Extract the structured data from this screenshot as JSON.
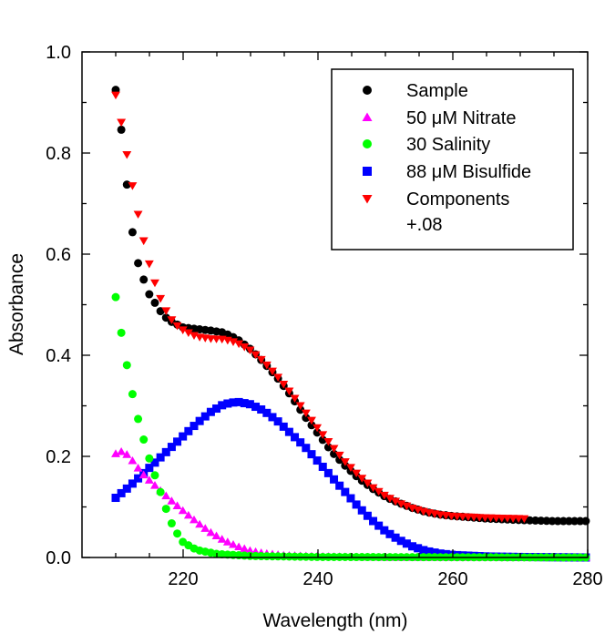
{
  "chart_data": {
    "type": "scatter",
    "title": "",
    "xlabel": "Wavelength (nm)",
    "ylabel": "Absorbance",
    "xlim": [
      205,
      280
    ],
    "ylim": [
      0,
      1.0
    ],
    "xticks": [
      220,
      240,
      260,
      280
    ],
    "yticks": [
      0.0,
      0.2,
      0.4,
      0.6,
      0.8,
      1.0
    ],
    "xtick_labels": [
      "220",
      "240",
      "260",
      "280"
    ],
    "ytick_labels": [
      "0.0",
      "0.2",
      "0.4",
      "0.6",
      "0.8",
      "1.0"
    ],
    "grid": false,
    "legend_position": "top-right",
    "series": [
      {
        "name": "Sample",
        "marker": "circle",
        "color": "#000000",
        "x_range": [
          210,
          280
        ],
        "x_step": 0.83,
        "key_points": [
          [
            210,
            0.925
          ],
          [
            211,
            0.83
          ],
          [
            212,
            0.69
          ],
          [
            213,
            0.595
          ],
          [
            214,
            0.555
          ],
          [
            215,
            0.52
          ],
          [
            216,
            0.5
          ],
          [
            217,
            0.48
          ],
          [
            218,
            0.468
          ],
          [
            220,
            0.455
          ],
          [
            222,
            0.452
          ],
          [
            224,
            0.449
          ],
          [
            226,
            0.445
          ],
          [
            228,
            0.432
          ],
          [
            230,
            0.412
          ],
          [
            232,
            0.385
          ],
          [
            234,
            0.355
          ],
          [
            236,
            0.32
          ],
          [
            238,
            0.28
          ],
          [
            240,
            0.245
          ],
          [
            242,
            0.21
          ],
          [
            244,
            0.182
          ],
          [
            246,
            0.157
          ],
          [
            248,
            0.137
          ],
          [
            250,
            0.12
          ],
          [
            252,
            0.108
          ],
          [
            254,
            0.098
          ],
          [
            256,
            0.09
          ],
          [
            258,
            0.085
          ],
          [
            260,
            0.082
          ],
          [
            265,
            0.077
          ],
          [
            270,
            0.074
          ],
          [
            275,
            0.072
          ],
          [
            280,
            0.072
          ]
        ]
      },
      {
        "name": "50 μM Nitrate",
        "marker": "triangle-up",
        "color": "#ff00ff",
        "x_range": [
          210,
          280
        ],
        "x_step": 0.83,
        "key_points": [
          [
            210,
            0.205
          ],
          [
            211,
            0.21
          ],
          [
            212,
            0.2
          ],
          [
            213,
            0.182
          ],
          [
            214,
            0.165
          ],
          [
            216,
            0.14
          ],
          [
            218,
            0.115
          ],
          [
            220,
            0.092
          ],
          [
            222,
            0.07
          ],
          [
            224,
            0.05
          ],
          [
            226,
            0.034
          ],
          [
            228,
            0.022
          ],
          [
            230,
            0.013
          ],
          [
            232,
            0.008
          ],
          [
            235,
            0.004
          ],
          [
            240,
            0.002
          ],
          [
            250,
            0.0
          ],
          [
            280,
            0.0
          ]
        ]
      },
      {
        "name": "30 Salinity",
        "marker": "circle",
        "color": "#00ff00",
        "x_range": [
          210,
          280
        ],
        "x_step": 0.83,
        "key_points": [
          [
            210,
            0.515
          ],
          [
            211,
            0.43
          ],
          [
            212,
            0.355
          ],
          [
            213,
            0.29
          ],
          [
            214,
            0.24
          ],
          [
            215,
            0.195
          ],
          [
            216,
            0.155
          ],
          [
            217,
            0.115
          ],
          [
            218,
            0.075
          ],
          [
            219,
            0.05
          ],
          [
            220,
            0.03
          ],
          [
            222,
            0.015
          ],
          [
            225,
            0.007
          ],
          [
            230,
            0.003
          ],
          [
            240,
            0.001
          ],
          [
            280,
            0.0
          ]
        ]
      },
      {
        "name": "88 μM Bisulfide",
        "marker": "square",
        "color": "#0000ff",
        "x_range": [
          210,
          280
        ],
        "x_step": 0.83,
        "key_points": [
          [
            210,
            0.118
          ],
          [
            212,
            0.14
          ],
          [
            214,
            0.165
          ],
          [
            216,
            0.19
          ],
          [
            218,
            0.215
          ],
          [
            220,
            0.24
          ],
          [
            222,
            0.265
          ],
          [
            224,
            0.287
          ],
          [
            226,
            0.303
          ],
          [
            228,
            0.308
          ],
          [
            230,
            0.303
          ],
          [
            232,
            0.29
          ],
          [
            234,
            0.27
          ],
          [
            236,
            0.245
          ],
          [
            238,
            0.22
          ],
          [
            240,
            0.19
          ],
          [
            242,
            0.16
          ],
          [
            244,
            0.13
          ],
          [
            246,
            0.1
          ],
          [
            248,
            0.074
          ],
          [
            250,
            0.052
          ],
          [
            252,
            0.035
          ],
          [
            254,
            0.022
          ],
          [
            256,
            0.013
          ],
          [
            258,
            0.008
          ],
          [
            260,
            0.005
          ],
          [
            265,
            0.002
          ],
          [
            270,
            0.001
          ],
          [
            280,
            0.0
          ]
        ]
      },
      {
        "name": "Components +.08",
        "marker": "triangle-down",
        "color": "#ff0000",
        "x_range": [
          210,
          271
        ],
        "x_step": 0.83,
        "key_points": [
          [
            210,
            0.915
          ],
          [
            211,
            0.85
          ],
          [
            212,
            0.77
          ],
          [
            213,
            0.7
          ],
          [
            214,
            0.635
          ],
          [
            215,
            0.58
          ],
          [
            216,
            0.535
          ],
          [
            217,
            0.5
          ],
          [
            218,
            0.475
          ],
          [
            219,
            0.46
          ],
          [
            220,
            0.45
          ],
          [
            222,
            0.437
          ],
          [
            224,
            0.433
          ],
          [
            226,
            0.432
          ],
          [
            228,
            0.425
          ],
          [
            230,
            0.41
          ],
          [
            232,
            0.387
          ],
          [
            234,
            0.358
          ],
          [
            236,
            0.325
          ],
          [
            238,
            0.29
          ],
          [
            240,
            0.255
          ],
          [
            242,
            0.222
          ],
          [
            244,
            0.19
          ],
          [
            246,
            0.163
          ],
          [
            248,
            0.14
          ],
          [
            250,
            0.122
          ],
          [
            252,
            0.108
          ],
          [
            254,
            0.098
          ],
          [
            256,
            0.09
          ],
          [
            258,
            0.085
          ],
          [
            260,
            0.082
          ],
          [
            265,
            0.079
          ],
          [
            271,
            0.077
          ]
        ]
      }
    ],
    "legend": [
      {
        "label": "Sample",
        "marker": "circle",
        "color": "#000000"
      },
      {
        "label": "50 μM Nitrate",
        "marker": "triangle-up",
        "color": "#ff00ff"
      },
      {
        "label": "30 Salinity",
        "marker": "circle",
        "color": "#00ff00"
      },
      {
        "label": "88 μM Bisulfide",
        "marker": "square",
        "color": "#0000ff"
      },
      {
        "label": "Components",
        "marker": "triangle-down",
        "color": "#ff0000"
      },
      {
        "label": "+.08",
        "marker": "",
        "color": ""
      }
    ]
  }
}
